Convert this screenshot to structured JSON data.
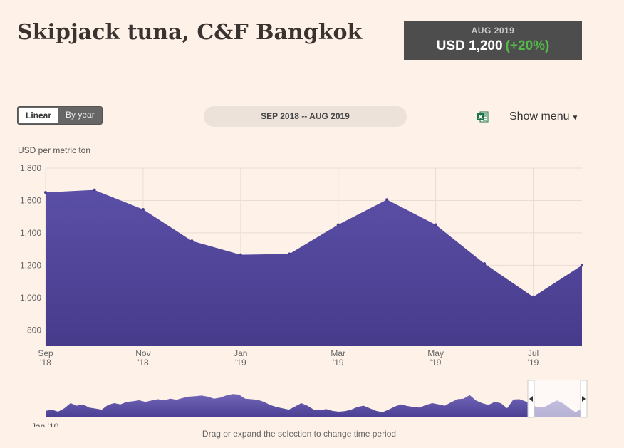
{
  "header": {
    "title": "Skipjack tuna, C&F Bangkok",
    "latest_date": "AUG 2019",
    "latest_value": "USD 1,200",
    "latest_change": "(+20%)"
  },
  "controls": {
    "toggle_linear": "Linear",
    "toggle_by_year": "By year",
    "range_label": "SEP 2018 -- AUG 2019",
    "excel_icon": "excel-icon",
    "show_menu": "Show menu",
    "show_menu_icon": "caret-down-icon"
  },
  "colors": {
    "area_top": "#5a4fa6",
    "area_bottom": "#463b8b",
    "navigator": "#5b4fa8",
    "change_positive": "#55b84a",
    "background": "#fdf1e8"
  },
  "navigator": {
    "start_label": "Jan '10",
    "hint": "Drag or expand the selection to change time period"
  },
  "chart_data": {
    "type": "area",
    "ylabel": "USD per metric ton",
    "ylim": [
      700,
      1800
    ],
    "yticks": [
      800,
      1000,
      1200,
      1400,
      1600,
      1800
    ],
    "ytick_labels": [
      "800",
      "1,000",
      "1,200",
      "1,400",
      "1,600",
      "1,800"
    ],
    "x": [
      "2018-09",
      "2018-10",
      "2018-11",
      "2018-12",
      "2019-01",
      "2019-02",
      "2019-03",
      "2019-04",
      "2019-05",
      "2019-06",
      "2019-07",
      "2019-08"
    ],
    "xtick_labels": [
      {
        "month": "Sep",
        "year": "'18"
      },
      {
        "month": "Nov",
        "year": "'18"
      },
      {
        "month": "Jan",
        "year": "'19"
      },
      {
        "month": "Mar",
        "year": "'19"
      },
      {
        "month": "May",
        "year": "'19"
      },
      {
        "month": "Jul",
        "year": "'19"
      }
    ],
    "values": [
      1650,
      1665,
      1545,
      1350,
      1265,
      1270,
      1450,
      1605,
      1450,
      1210,
      1005,
      1200
    ],
    "grid": true,
    "legend": "none"
  }
}
